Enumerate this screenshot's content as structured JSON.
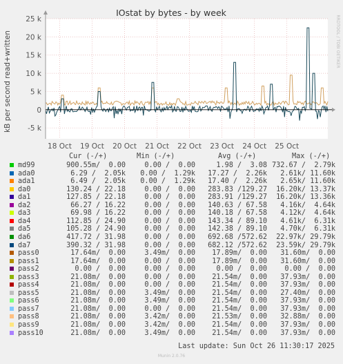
{
  "chart_data": {
    "type": "line",
    "title": "IOstat by bytes - by week",
    "ylabel": "kB per second read+written",
    "side_label": "RRDTOOL / TOBI OETIKER",
    "ylim": [
      -8000,
      25000
    ],
    "yticks": [
      -5000,
      0,
      5000,
      10000,
      15000,
      20000,
      25000
    ],
    "ytick_labels": [
      "-5 k",
      "0",
      "5 k",
      "10 k",
      "15 k",
      "20 k",
      "25 k"
    ],
    "xtick_labels": [
      "18 Oct",
      "19 Oct",
      "20 Oct",
      "21 Oct",
      "22 Oct",
      "23 Oct",
      "24 Oct",
      "25 Oct"
    ],
    "grid": true,
    "series": [
      {
        "name": "da6",
        "color": "#D1A05F",
        "spikes": [
          [
            0.06,
            4000
          ],
          [
            0.19,
            6000
          ],
          [
            0.38,
            6000
          ],
          [
            0.47,
            3000
          ],
          [
            0.64,
            6000
          ],
          [
            0.77,
            6500
          ],
          [
            0.87,
            9500
          ],
          [
            0.98,
            6000
          ]
        ],
        "baseline": 1800
      },
      {
        "name": "da7",
        "color": "#1A4A5A",
        "spikes": [
          [
            0.06,
            3000
          ],
          [
            0.19,
            5000
          ],
          [
            0.38,
            7500
          ],
          [
            0.67,
            13000
          ],
          [
            0.8,
            7000
          ],
          [
            0.93,
            22500
          ],
          [
            0.95,
            10000
          ]
        ],
        "baseline": 200
      }
    ]
  },
  "legend": {
    "headers": {
      "cur": "Cur (-/+)",
      "min": "Min (-/+)",
      "avg": "Avg (-/+)",
      "max": "Max (-/+)"
    },
    "rows": [
      {
        "name": "md99",
        "color": "#00CC00",
        "cur": "900.55m/  0.00",
        "min": "0.00 /  0.00",
        "avg": "1.98 /  3.08",
        "max": "732.67 /  2.79k"
      },
      {
        "name": "ada0",
        "color": "#0066B3",
        "cur": "6.29 /  2.05k",
        "min": "0.00 /  1.29k",
        "avg": "17.27 /  2.26k",
        "max": "2.61k/ 11.60k"
      },
      {
        "name": "ada1",
        "color": "#FF8000",
        "cur": "6.49 /  2.05k",
        "min": "0.00 /  1.29k",
        "avg": "17.40 /  2.26k",
        "max": "2.65k/ 11.60k"
      },
      {
        "name": "da0",
        "color": "#FFCC00",
        "cur": "130.24 / 22.18",
        "min": "0.00 /  0.00",
        "avg": "283.83 /129.27",
        "max": "16.20k/ 13.37k"
      },
      {
        "name": "da1",
        "color": "#330099",
        "cur": "127.85 / 22.18",
        "min": "0.00 /  0.00",
        "avg": "283.91 /129.27",
        "max": "16.20k/ 13.36k"
      },
      {
        "name": "da2",
        "color": "#990099",
        "cur": "66.27 / 16.22",
        "min": "0.00 /  0.00",
        "avg": "140.63 / 67.58",
        "max": "4.16k/  4.64k"
      },
      {
        "name": "da3",
        "color": "#CCFF00",
        "cur": "69.98 / 16.22",
        "min": "0.00 /  0.00",
        "avg": "140.18 / 67.58",
        "max": "4.12k/  4.64k"
      },
      {
        "name": "da4",
        "color": "#FF0000",
        "cur": "112.85 / 24.90",
        "min": "0.00 /  0.00",
        "avg": "143.34 / 89.10",
        "max": "4.61k/  6.31k"
      },
      {
        "name": "da5",
        "color": "#808080",
        "cur": "105.28 / 24.90",
        "min": "0.00 /  0.00",
        "avg": "142.38 / 89.10",
        "max": "4.70k/  6.31k"
      },
      {
        "name": "da6",
        "color": "#008F00",
        "cur": "417.72 / 31.98",
        "min": "0.00 /  0.00",
        "avg": "692.68 /572.62",
        "max": "22.97k/ 29.79k"
      },
      {
        "name": "da7",
        "color": "#00487D",
        "cur": "390.32 / 31.98",
        "min": "0.00 /  0.00",
        "avg": "682.12 /572.62",
        "max": "23.59k/ 29.79k"
      },
      {
        "name": "pass0",
        "color": "#B35A00",
        "cur": "17.64m/  0.00",
        "min": "3.49m/  0.00",
        "avg": "17.89m/  0.00",
        "max": "31.60m/  0.00"
      },
      {
        "name": "pass1",
        "color": "#B38F00",
        "cur": "17.64m/  0.00",
        "min": "0.00 /  0.00",
        "avg": "17.89m/  0.00",
        "max": "31.60m/  0.00"
      },
      {
        "name": "pass2",
        "color": "#6B006B",
        "cur": "0.00 /  0.00",
        "min": "0.00 /  0.00",
        "avg": "0.00 /  0.00",
        "max": "0.00 /  0.00"
      },
      {
        "name": "pass3",
        "color": "#8FB300",
        "cur": "21.08m/  0.00",
        "min": "0.00 /  0.00",
        "avg": "21.54m/  0.00",
        "max": "37.93m/  0.00"
      },
      {
        "name": "pass4",
        "color": "#B30000",
        "cur": "21.08m/  0.00",
        "min": "0.00 /  0.00",
        "avg": "21.54m/  0.00",
        "max": "37.93m/  0.00"
      },
      {
        "name": "pass5",
        "color": "#BEBEBE",
        "cur": "21.08m/  0.00",
        "min": "3.49m/  0.00",
        "avg": "21.54m/  0.00",
        "max": "27.40m/  0.00"
      },
      {
        "name": "pass6",
        "color": "#80FF80",
        "cur": "21.08m/  0.00",
        "min": "3.49m/  0.00",
        "avg": "21.54m/  0.00",
        "max": "37.93m/  0.00"
      },
      {
        "name": "pass7",
        "color": "#80C9FF",
        "cur": "21.08m/  0.00",
        "min": "0.00 /  0.00",
        "avg": "21.54m/  0.00",
        "max": "37.93m/  0.00"
      },
      {
        "name": "pass8",
        "color": "#FFC080",
        "cur": "21.08m/  0.00",
        "min": "3.42m/  0.00",
        "avg": "21.53m/  0.00",
        "max": "32.88m/  0.00"
      },
      {
        "name": "pass9",
        "color": "#FFE680",
        "cur": "21.08m/  0.00",
        "min": "3.42m/  0.00",
        "avg": "21.54m/  0.00",
        "max": "37.93m/  0.00"
      },
      {
        "name": "pass10",
        "color": "#AA80FF",
        "cur": "21.08m/  0.00",
        "min": "3.49m/  0.00",
        "avg": "21.54m/  0.00",
        "max": "37.93m/  0.00"
      }
    ]
  },
  "footer": "Last update: Sun Oct 26 11:30:17 2025",
  "munin_version": "Munin 2.0.76"
}
